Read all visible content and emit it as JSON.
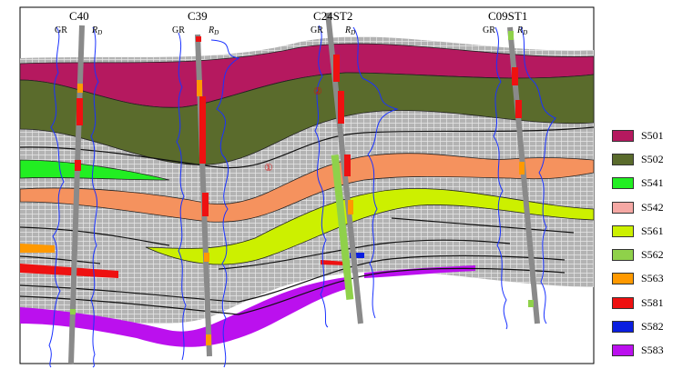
{
  "wells": [
    {
      "name": "C40",
      "gr": "GR",
      "rd": "R",
      "rd_sub": "D"
    },
    {
      "name": "C39",
      "gr": "GR",
      "rd": "R",
      "rd_sub": "D"
    },
    {
      "name": "C24ST2",
      "gr": "GR",
      "rd": "R",
      "rd_sub": "D"
    },
    {
      "name": "C09ST1",
      "gr": "GR",
      "rd": "R",
      "rd_sub": "D"
    }
  ],
  "markers": [
    "①",
    "②"
  ],
  "legend": [
    {
      "label": "S501",
      "color": "#b5195f"
    },
    {
      "label": "S502",
      "color": "#5a6b2c"
    },
    {
      "label": "S541",
      "color": "#22ee22"
    },
    {
      "label": "S542",
      "color": "#f5a8a4"
    },
    {
      "label": "S561",
      "color": "#ccf000"
    },
    {
      "label": "S562",
      "color": "#8fd14a"
    },
    {
      "label": "S563",
      "color": "#ff9900"
    },
    {
      "label": "S581",
      "color": "#ee1111"
    },
    {
      "label": "S582",
      "color": "#0a1ee0"
    },
    {
      "label": "S583",
      "color": "#bb10ee"
    }
  ],
  "colors": {
    "background_grid": "#b3b3b3",
    "grid_line": "#e6e6e6",
    "log_curve": "#1a32ff",
    "well_track": "#8a8a8a"
  }
}
